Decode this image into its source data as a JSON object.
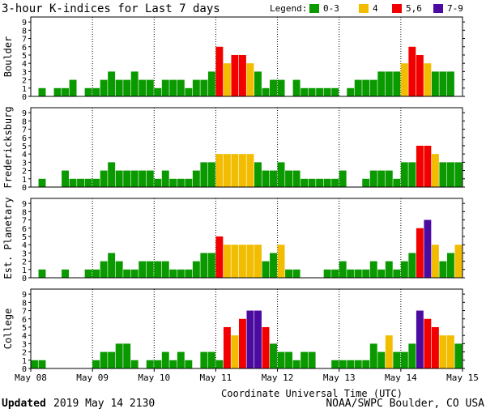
{
  "chart_data": {
    "type": "bar",
    "title": "3-hour K-indices for Last 7 days",
    "xlabel": "Coordinate Universal Time (UTC)",
    "ylim": [
      0,
      9
    ],
    "y_ticks": [
      "0",
      "1",
      "2",
      "3",
      "4",
      "5",
      "6",
      "7",
      "8",
      "9"
    ],
    "x_ticks": [
      "May 08",
      "May 09",
      "May 10",
      "May 11",
      "May 12",
      "May 13",
      "May 14",
      "May 15"
    ],
    "legend": {
      "label": "Legend:",
      "placement": "top-right",
      "items": [
        {
          "label": "0-3",
          "color": "#0a9a00"
        },
        {
          "label": "4",
          "color": "#f2bd00"
        },
        {
          "label": "5,6",
          "color": "#f20000"
        },
        {
          "label": "7-9",
          "color": "#4b0aa0"
        }
      ]
    },
    "colors": {
      "low": "#0a9a00",
      "k4": "#f2bd00",
      "k56": "#f20000",
      "k79": "#4b0aa0"
    },
    "panels": [
      {
        "name": "Boulder",
        "values": [
          0,
          1,
          0,
          1,
          1,
          2,
          0,
          1,
          1,
          2,
          3,
          2,
          2,
          3,
          2,
          2,
          1,
          2,
          2,
          2,
          1,
          2,
          2,
          3,
          6,
          4,
          5,
          5,
          4,
          3,
          1,
          2,
          2,
          0,
          2,
          1,
          1,
          1,
          1,
          1,
          0,
          1,
          2,
          2,
          2,
          3,
          3,
          3,
          4,
          6,
          5,
          4,
          3,
          3,
          3,
          0
        ]
      },
      {
        "name": "Fredericksburg",
        "values": [
          0,
          1,
          0,
          0,
          2,
          1,
          1,
          1,
          1,
          2,
          3,
          2,
          2,
          2,
          2,
          2,
          1,
          2,
          1,
          1,
          1,
          2,
          3,
          3,
          4,
          4,
          4,
          4,
          4,
          3,
          2,
          2,
          3,
          2,
          2,
          1,
          1,
          1,
          1,
          1,
          2,
          0,
          0,
          1,
          2,
          2,
          2,
          1,
          3,
          3,
          5,
          5,
          4,
          3,
          3,
          3,
          0
        ]
      },
      {
        "name": "Est. Planetary",
        "values": [
          0,
          1,
          0,
          0,
          1,
          0,
          0,
          1,
          1,
          2,
          3,
          2,
          1,
          1,
          2,
          2,
          2,
          2,
          1,
          1,
          1,
          2,
          3,
          3,
          5,
          4,
          4,
          4,
          4,
          4,
          2,
          3,
          4,
          1,
          1,
          0,
          0,
          0,
          1,
          1,
          2,
          1,
          1,
          1,
          2,
          1,
          2,
          1,
          2,
          3,
          6,
          7,
          4,
          2,
          3,
          4,
          0
        ]
      },
      {
        "name": "College",
        "values": [
          1,
          1,
          0,
          0,
          0,
          0,
          0,
          0,
          1,
          2,
          2,
          3,
          3,
          1,
          0,
          1,
          1,
          2,
          1,
          2,
          1,
          0,
          2,
          2,
          1,
          5,
          4,
          6,
          7,
          7,
          5,
          3,
          2,
          2,
          1,
          2,
          2,
          0,
          0,
          1,
          1,
          1,
          1,
          1,
          3,
          2,
          4,
          2,
          2,
          3,
          7,
          6,
          5,
          4,
          4,
          3,
          0
        ]
      }
    ]
  },
  "footer": {
    "updated_label": "Updated",
    "updated_value": "2019 May 14 2130",
    "source": "NOAA/SWPC Boulder, CO USA"
  }
}
